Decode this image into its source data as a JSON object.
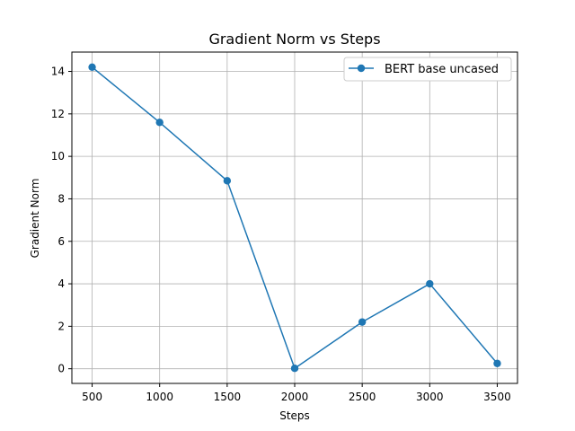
{
  "chart_data": {
    "type": "line",
    "title": "Gradient Norm vs Steps",
    "xlabel": "Steps",
    "ylabel": "Gradient Norm",
    "x": [
      500,
      1000,
      1500,
      2000,
      2500,
      3000,
      3500
    ],
    "series": [
      {
        "name": "BERT base uncased",
        "values": [
          14.2,
          11.6,
          8.85,
          0.02,
          2.2,
          4.0,
          0.25
        ],
        "color": "#1f77b4",
        "marker": "circle"
      }
    ],
    "xticks": [
      500,
      1000,
      1500,
      2000,
      2500,
      3000,
      3500
    ],
    "yticks": [
      0,
      2,
      4,
      6,
      8,
      10,
      12,
      14
    ],
    "xtick_labels": [
      "500",
      "1000",
      "1500",
      "2000",
      "2500",
      "3000",
      "3500"
    ],
    "ytick_labels": [
      "0",
      "2",
      "4",
      "6",
      "8",
      "10",
      "12",
      "14"
    ],
    "xlim": [
      350,
      3650
    ],
    "ylim": [
      -0.69,
      14.91
    ],
    "grid": true,
    "legend_position": "top-right"
  }
}
